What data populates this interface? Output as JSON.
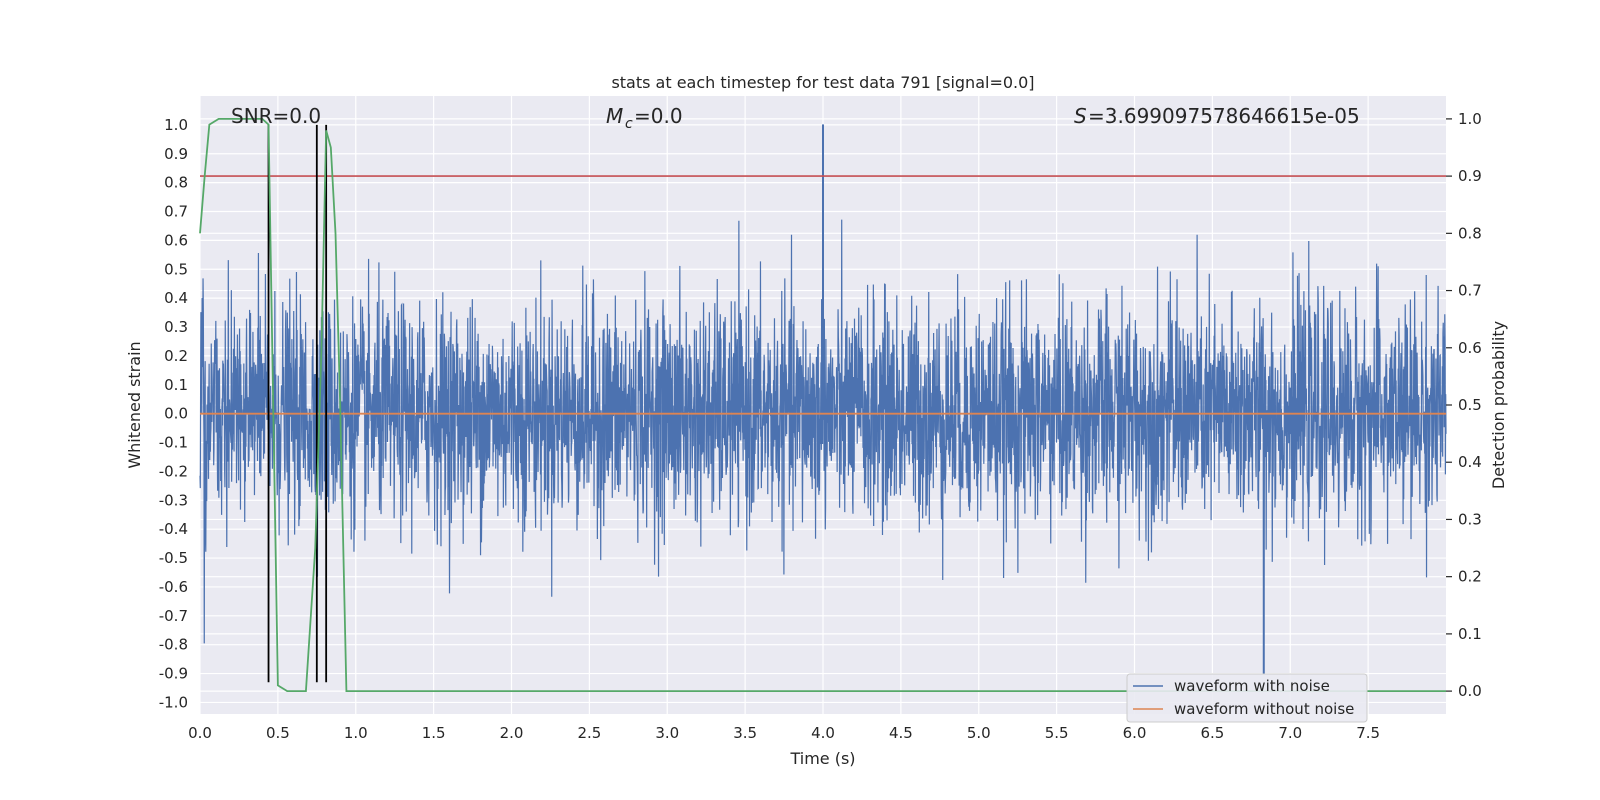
{
  "chart_data": {
    "type": "line",
    "title": "stats at each timestep for test data 791 [signal=0.0]",
    "xlabel": "Time (s)",
    "ylabel_left": "Whitened strain",
    "ylabel_right": "Detection probability",
    "xlim": [
      0.0,
      8.0
    ],
    "ylim_left": [
      -1.04,
      1.1
    ],
    "ylim_right": [
      -0.04,
      1.04
    ],
    "x_ticks": [
      "0.0",
      "0.5",
      "1.0",
      "1.5",
      "2.0",
      "2.5",
      "3.0",
      "3.5",
      "4.0",
      "4.5",
      "5.0",
      "5.5",
      "6.0",
      "6.5",
      "7.0",
      "7.5"
    ],
    "x_tick_values": [
      0.0,
      0.5,
      1.0,
      1.5,
      2.0,
      2.5,
      3.0,
      3.5,
      4.0,
      4.5,
      5.0,
      5.5,
      6.0,
      6.5,
      7.0,
      7.5
    ],
    "y_ticks_left": [
      "1.0",
      "0.9",
      "0.8",
      "0.7",
      "0.6",
      "0.5",
      "0.4",
      "0.3",
      "0.2",
      "0.1",
      "0.0",
      "-0.1",
      "-0.2",
      "-0.3",
      "-0.4",
      "-0.5",
      "-0.6",
      "-0.7",
      "-0.8",
      "-0.9",
      "-1.0"
    ],
    "y_tick_values_left": [
      1.0,
      0.9,
      0.8,
      0.7,
      0.6,
      0.5,
      0.4,
      0.3,
      0.2,
      0.1,
      0.0,
      -0.1,
      -0.2,
      -0.3,
      -0.4,
      -0.5,
      -0.6,
      -0.7,
      -0.8,
      -0.9,
      -1.0
    ],
    "y_ticks_right": [
      "1.0",
      "0.9",
      "0.8",
      "0.7",
      "0.6",
      "0.5",
      "0.4",
      "0.3",
      "0.2",
      "0.1",
      "0.0"
    ],
    "y_tick_values_right": [
      1.0,
      0.9,
      0.8,
      0.7,
      0.6,
      0.5,
      0.4,
      0.3,
      0.2,
      0.1,
      0.0
    ],
    "annotations": {
      "snr": "SNR=0.0",
      "mc": "=0.0",
      "mc_symbol": "M",
      "mc_subscript": "c",
      "s": "=3.699097578646615e-05",
      "s_symbol": "S"
    },
    "series": [
      {
        "name": "waveform with noise",
        "axis": "left",
        "color": "#4c72b0",
        "description_values": {
          "x_start": 0.0,
          "x_end": 8.0,
          "typical_range": [
            -0.45,
            0.45
          ],
          "max_peak": {
            "x": 4.0,
            "y": 1.0
          },
          "min_peak": {
            "x": 6.83,
            "y": -0.9
          }
        }
      },
      {
        "name": "waveform without noise",
        "axis": "left",
        "color": "#dd8452",
        "x": [
          0.0,
          8.0
        ],
        "y": [
          0.0,
          0.0
        ]
      },
      {
        "name": "",
        "axis": "right",
        "color": "#55a868",
        "x": [
          0.0,
          0.03,
          0.06,
          0.12,
          0.2,
          0.3,
          0.4,
          0.44,
          0.47,
          0.5,
          0.56,
          0.62,
          0.68,
          0.74,
          0.78,
          0.81,
          0.84,
          0.87,
          0.9,
          0.94,
          1.0,
          2.0,
          4.0,
          6.0,
          8.0
        ],
        "y": [
          0.8,
          0.9,
          0.99,
          1.0,
          1.0,
          1.0,
          1.0,
          0.99,
          0.5,
          0.01,
          0.0,
          0.0,
          0.0,
          0.25,
          0.6,
          0.98,
          0.95,
          0.8,
          0.5,
          0.0,
          0.0,
          0.0,
          0.0,
          0.0,
          0.0
        ]
      }
    ],
    "threshold_line": {
      "axis": "right",
      "value": 0.9,
      "color": "#c44e52"
    },
    "vertical_markers": {
      "x": [
        0.44,
        0.75,
        0.81
      ],
      "ymin_left": -0.93,
      "ymax_left": 1.0,
      "color": "#000000"
    },
    "legend": {
      "placement": "lower-right",
      "entries": [
        "waveform with noise",
        "waveform without noise"
      ]
    },
    "grid": true
  }
}
